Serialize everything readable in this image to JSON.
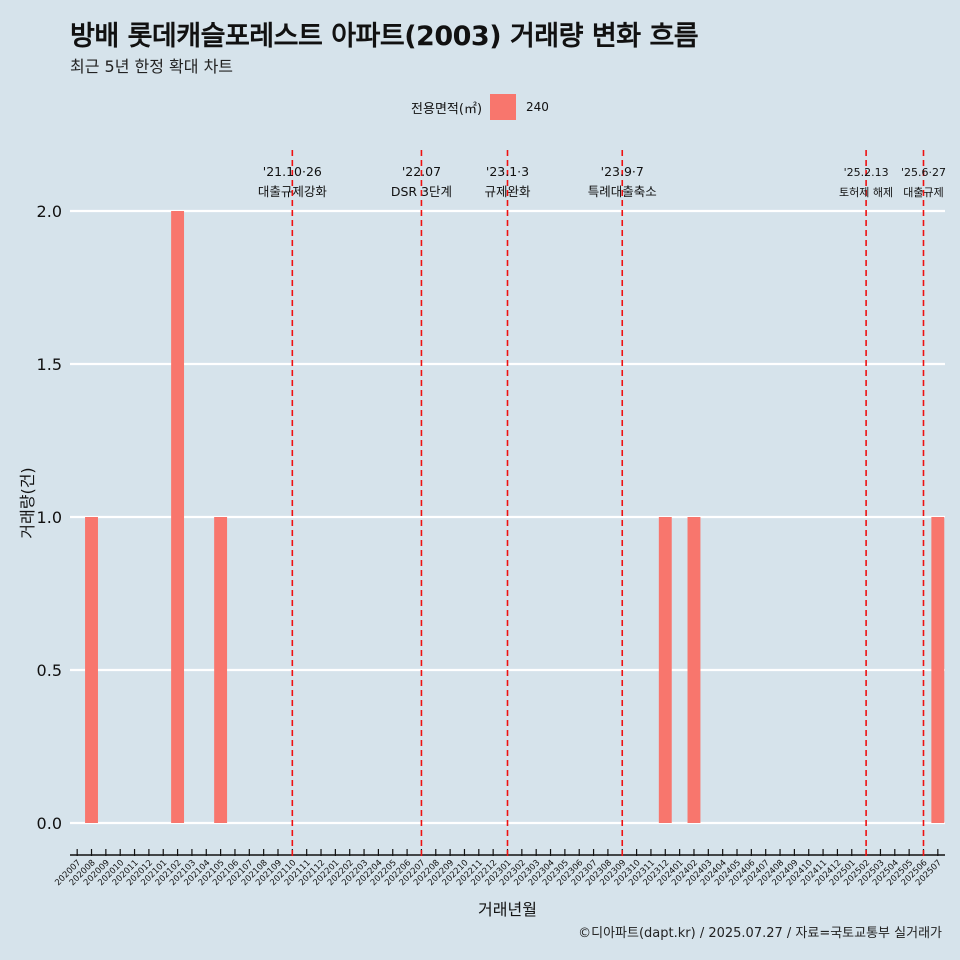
{
  "title": "방배 롯데캐슬포레스트 아파트(2003) 거래량 변화 흐름",
  "subtitle": "최근 5년 한정 확대 차트",
  "caption": "©디아파트(dapt.kr) / 2025.07.27 / 자료=국토교통부 실거래가",
  "colors": {
    "background": "#d6e3eb",
    "bar": "#f8766d",
    "event_line": "#ee1111",
    "grid": "#ffffff"
  },
  "legend": {
    "title": "전용면적(㎡)",
    "label": "240"
  },
  "chart_data": {
    "type": "bar",
    "xlabel": "거래년월",
    "ylabel": "거래량(건)",
    "ylim": [
      0,
      2
    ],
    "yticks": [
      "0.0",
      "0.5",
      "1.0",
      "1.5",
      "2.0"
    ],
    "grid": true,
    "legend_position": "top",
    "categories": [
      "202007",
      "202008",
      "202009",
      "202010",
      "202011",
      "202012",
      "202101",
      "202102",
      "202103",
      "202104",
      "202105",
      "202106",
      "202107",
      "202108",
      "202109",
      "202110",
      "202111",
      "202112",
      "202201",
      "202202",
      "202203",
      "202204",
      "202205",
      "202206",
      "202207",
      "202208",
      "202209",
      "202210",
      "202211",
      "202212",
      "202301",
      "202302",
      "202303",
      "202304",
      "202305",
      "202306",
      "202307",
      "202308",
      "202309",
      "202310",
      "202311",
      "202312",
      "202401",
      "202402",
      "202403",
      "202404",
      "202405",
      "202406",
      "202407",
      "202408",
      "202409",
      "202410",
      "202411",
      "202412",
      "202501",
      "202502",
      "202503",
      "202504",
      "202505",
      "202506",
      "202507"
    ],
    "series": [
      {
        "name": "240",
        "values": [
          0,
          1,
          0,
          0,
          0,
          0,
          0,
          2,
          0,
          0,
          1,
          0,
          0,
          0,
          0,
          0,
          0,
          0,
          0,
          0,
          0,
          0,
          0,
          0,
          0,
          0,
          0,
          0,
          0,
          0,
          0,
          0,
          0,
          0,
          0,
          0,
          0,
          0,
          0,
          0,
          0,
          1,
          0,
          1,
          0,
          0,
          0,
          0,
          0,
          0,
          0,
          0,
          0,
          0,
          0,
          0,
          0,
          0,
          0,
          0,
          1
        ]
      }
    ],
    "events": [
      {
        "category": "202110",
        "date": "'21.10·26",
        "label": "대출규제강화"
      },
      {
        "category": "202207",
        "date": "'22.07",
        "label": "DSR 3단계"
      },
      {
        "category": "202301",
        "date": "'23.1·3",
        "label": "규제완화"
      },
      {
        "category": "202309",
        "date": "'23.9·7",
        "label": "특례대출축소"
      },
      {
        "category": "202502",
        "date": "'25.2.13",
        "label": "토허제 해제"
      },
      {
        "category": "202506",
        "date": "'25.6·27",
        "label": "대출규제"
      }
    ]
  }
}
